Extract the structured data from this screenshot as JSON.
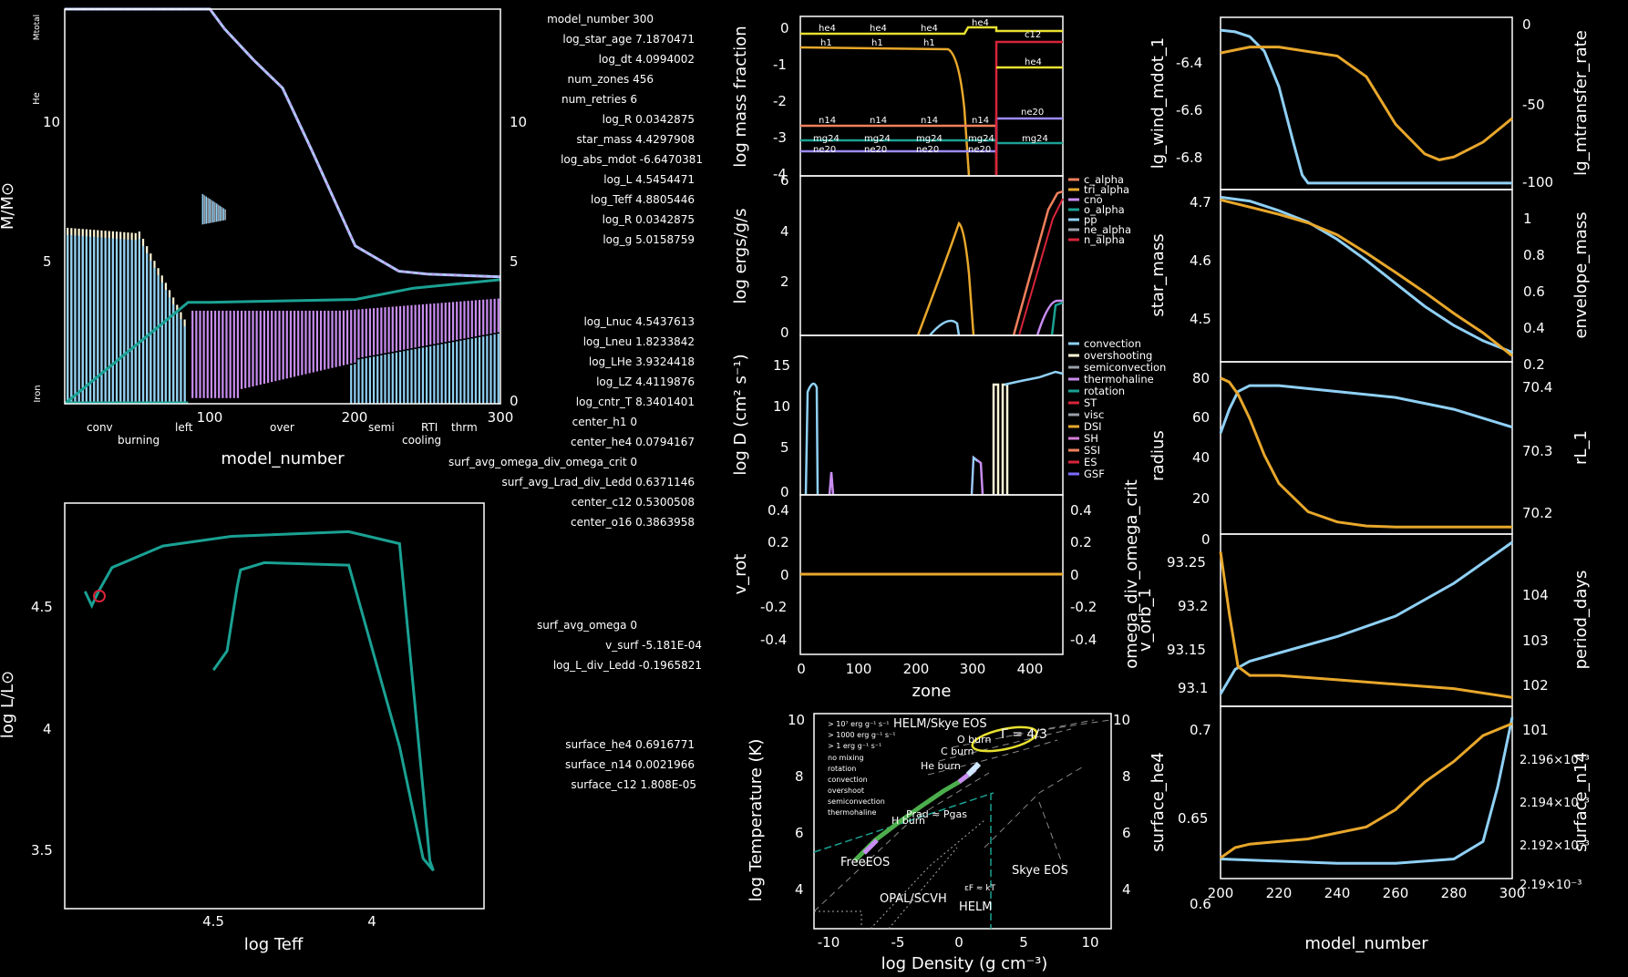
{
  "colors": {
    "orange": "#e8a72b",
    "blue": "#8fd0f5",
    "teal": "#1aa193",
    "purple": "#c88df0",
    "cream": "#fff7d6",
    "red": "#d8243a",
    "salmon": "#f0805c",
    "magenta": "#d77ed8",
    "gray": "#9aa0aa",
    "green": "#4cae4c"
  },
  "info": [
    {
      "label": "model_number",
      "value": "300"
    },
    {
      "label": "log_star_age",
      "value": "7.1870471"
    },
    {
      "label": "log_dt",
      "value": "4.0994002"
    },
    {
      "label": "num_zones",
      "value": "456"
    },
    {
      "label": "num_retries",
      "value": "6"
    },
    {
      "label": "log_R",
      "value": "0.0342875"
    },
    {
      "label": "star_mass",
      "value": "4.4297908"
    },
    {
      "label": "log_abs_mdot",
      "value": "-6.6470381"
    },
    {
      "label": "log_L",
      "value": "4.5454471"
    },
    {
      "label": "log_Teff",
      "value": "4.8805446"
    },
    {
      "label": "log_R",
      "value": "0.0342875"
    },
    {
      "label": "log_g",
      "value": "5.0158759"
    },
    {
      "label": "log_Lnuc",
      "value": "4.5437613"
    },
    {
      "label": "log_Lneu",
      "value": "1.8233842"
    },
    {
      "label": "log_LHe",
      "value": "3.9324418"
    },
    {
      "label": "log_LZ",
      "value": "4.4119876"
    },
    {
      "label": "log_cntr_T",
      "value": "8.3401401"
    },
    {
      "label": "center_h1",
      "value": "0"
    },
    {
      "label": "center_he4",
      "value": "0.0794167"
    },
    {
      "label": "surf_avg_omega_div_omega_crit",
      "value": "0"
    },
    {
      "label": "surf_avg_Lrad_div_Ledd",
      "value": "0.6371146"
    },
    {
      "label": "center_c12",
      "value": "0.5300508"
    },
    {
      "label": "center_o16",
      "value": "0.3863958"
    },
    {
      "label": "surf_avg_omega",
      "value": "0"
    },
    {
      "label": "v_surf",
      "value": "-5.181E-04"
    },
    {
      "label": "log_L_div_Ledd",
      "value": "-0.1965821"
    },
    {
      "label": "surface_he4",
      "value": "0.6916771"
    },
    {
      "label": "surface_n14",
      "value": "0.0021966"
    },
    {
      "label": "surface_c12",
      "value": "1.808E-05"
    }
  ],
  "chart_data": [
    {
      "id": "kipp",
      "type": "line",
      "xlabel": "model_number",
      "ylabel": "M/M⊙",
      "xlim": [
        0,
        300
      ],
      "ylim": [
        0,
        14
      ],
      "xticks": [
        "100",
        "200",
        "300"
      ],
      "yticks_left": [
        "5",
        "10"
      ],
      "yticks_right": [
        "0",
        "5",
        "10"
      ],
      "side_labels": {
        "mtotal": "Mtotal",
        "he": "He",
        "iron": "Iron"
      },
      "legend": [
        {
          "text": "conv",
          "color": "#8fd0f5"
        },
        {
          "text": "burning",
          "color": "#f0805c"
        },
        {
          "text": "left",
          "color": "#4f8fff"
        },
        {
          "text": "over",
          "color": "#ffffff"
        },
        {
          "text": "semi",
          "color": "#9aa0aa"
        },
        {
          "text": "cooling",
          "color": "#7b6cff"
        },
        {
          "text": "RTI",
          "color": "#f0805c"
        },
        {
          "text": "thrm",
          "color": "#c88df0"
        }
      ],
      "mass": {
        "x": [
          0,
          100,
          110,
          130,
          150,
          170,
          200,
          230,
          250,
          300
        ],
        "y": [
          14,
          14,
          13.3,
          12.2,
          11.2,
          9.0,
          5.6,
          4.7,
          4.6,
          4.5
        ]
      },
      "he_core": {
        "x": [
          0,
          85,
          100,
          200,
          240,
          300
        ],
        "y": [
          0,
          3.6,
          3.6,
          3.7,
          4.1,
          4.4
        ]
      }
    },
    {
      "id": "hr",
      "type": "line",
      "xlabel": "log Teff",
      "ylabel": "log L/L⊙",
      "xticks": [
        "4.5",
        "4"
      ],
      "yticks": [
        "3.5",
        "4",
        "4.5"
      ],
      "track": {
        "x": [
          4.88,
          4.86,
          4.84,
          4.8,
          4.65,
          4.45,
          4.1,
          3.95,
          3.86,
          3.85,
          3.88,
          3.95,
          4.1,
          4.35,
          4.42,
          4.43,
          4.46,
          4.5
        ],
        "y": [
          4.55,
          4.49,
          4.55,
          4.65,
          4.74,
          4.78,
          4.8,
          4.75,
          3.42,
          3.38,
          3.43,
          3.9,
          4.66,
          4.67,
          4.64,
          4.57,
          4.3,
          4.22
        ]
      }
    },
    {
      "id": "abund",
      "type": "line",
      "ylabel": "log mass fraction",
      "yticks": [
        "0",
        "-1",
        "-2",
        "-3",
        "-4"
      ],
      "ylim": [
        -4,
        0.3
      ],
      "isotope_labels": [
        "he4",
        "he4",
        "he4",
        "he4",
        "h1",
        "h1",
        "h1",
        "n14",
        "n14",
        "n14",
        "n14",
        "mg24",
        "mg24",
        "mg24",
        "mg24",
        "mg24",
        "ne20",
        "ne20",
        "ne20",
        "ne20",
        "c12",
        "he4",
        "ne20"
      ]
    },
    {
      "id": "power",
      "type": "line",
      "ylabel": "log ergs/g/s",
      "yticks": [
        "0",
        "2",
        "4",
        "6"
      ],
      "ylim": [
        -0.2,
        6.2
      ],
      "legend": [
        {
          "text": "c_alpha",
          "color": "#f0805c"
        },
        {
          "text": "tri_alpha",
          "color": "#e8a72b"
        },
        {
          "text": "cno",
          "color": "#c88df0"
        },
        {
          "text": "o_alpha",
          "color": "#1aa193"
        },
        {
          "text": "pp",
          "color": "#8fd0f5"
        },
        {
          "text": "ne_alpha",
          "color": "#9aa0aa"
        },
        {
          "text": "n_alpha",
          "color": "#d8243a"
        }
      ]
    },
    {
      "id": "mixing",
      "type": "line",
      "ylabel": "log D (cm² s⁻¹)",
      "yticks": [
        "0",
        "5",
        "10",
        "15"
      ],
      "ylim": [
        0,
        17.5
      ],
      "legend": [
        {
          "text": "convection",
          "color": "#8fd0f5"
        },
        {
          "text": "overshooting",
          "color": "#fff7d6"
        },
        {
          "text": "semiconvection",
          "color": "#9aa0aa"
        },
        {
          "text": "thermohaline",
          "color": "#c88df0"
        },
        {
          "text": "rotation",
          "color": "#1aa193"
        },
        {
          "text": "ST",
          "color": "#d8243a"
        },
        {
          "text": "visc",
          "color": "#9aa0aa"
        },
        {
          "text": "DSI",
          "color": "#e8a72b"
        },
        {
          "text": "SH",
          "color": "#d77ed8"
        },
        {
          "text": "SSI",
          "color": "#f0805c"
        },
        {
          "text": "ES",
          "color": "#d8243a"
        },
        {
          "text": "GSF",
          "color": "#7b6cff"
        }
      ]
    },
    {
      "id": "rot",
      "type": "line",
      "xlabel": "zone",
      "ylabel_left": "v_rot",
      "ylabel_right": "omega_div_omega_crit",
      "xticks": [
        "0",
        "100",
        "200",
        "300",
        "400"
      ],
      "yticks": [
        "0.4",
        "0.2",
        "0",
        "-0.2",
        "-0.4"
      ],
      "ylim": [
        -0.5,
        0.5
      ]
    },
    {
      "id": "trho",
      "type": "line",
      "xlabel": "log Density (g cm⁻³)",
      "ylabel": "log Temperature (K)",
      "xticks": [
        "-10",
        "-5",
        "0",
        "5",
        "10"
      ],
      "yticks": [
        "4",
        "6",
        "8",
        "10"
      ],
      "labels": {
        "helm": "HELM/Skye EOS",
        "free": "FreeEOS",
        "skye": "Skye EOS",
        "opal": "OPAL/SCVH",
        "helm2": "HELM",
        "gamma": "Γ = 4/3",
        "oburn": "O burn",
        "cburn": "C burn",
        "heburn": "He burn",
        "hburn": "H burn",
        "prad": "Prad ≈ Pgas",
        "eps": "εF ≈ kT"
      },
      "legend": [
        {
          "text": "> 10⁷ erg g⁻¹ s⁻¹",
          "color": "#d8243a"
        },
        {
          "text": "> 1000 erg g⁻¹ s⁻¹",
          "color": "#f0805c"
        },
        {
          "text": "> 1 erg g⁻¹ s⁻¹",
          "color": "#e8e030"
        },
        {
          "text": "no mixing",
          "color": "#4cae4c"
        },
        {
          "text": "rotation",
          "color": "#1aa193"
        },
        {
          "text": "convection",
          "color": "#8fd0f5"
        },
        {
          "text": "overshoot",
          "color": "#ffffff"
        },
        {
          "text": "semiconvection",
          "color": "#9aa0aa"
        },
        {
          "text": "thermohaline",
          "color": "#c88df0"
        }
      ]
    },
    {
      "id": "h1",
      "type": "line",
      "ylabel_left": "lg_wind_mdot_1",
      "ylabel_right": "lg_mtransfer_rate",
      "yticks_left": [
        "-6.4",
        "-6.6",
        "-6.8"
      ],
      "yticks_right": [
        "0",
        "-50",
        "-100"
      ],
      "left": {
        "x": [
          200,
          210,
          220,
          240,
          250,
          260,
          270,
          275,
          280,
          290,
          300
        ],
        "y": [
          -6.42,
          -6.4,
          -6.4,
          -6.43,
          -6.5,
          -6.66,
          -6.76,
          -6.78,
          -6.77,
          -6.72,
          -6.64
        ]
      },
      "right": {
        "x": [
          200,
          205,
          210,
          215,
          220,
          225,
          228,
          230,
          300
        ],
        "y": [
          -5,
          -6,
          -9,
          -18,
          -40,
          -75,
          -95,
          -100,
          -100
        ]
      }
    },
    {
      "id": "h2",
      "type": "line",
      "ylabel_left": "star_mass",
      "ylabel_right": "envelope_mass",
      "yticks_left": [
        "4.7",
        "4.6",
        "4.5"
      ],
      "yticks_right": [
        "1",
        "0.8",
        "0.6",
        "0.4",
        "0.2"
      ],
      "left": {
        "x": [
          200,
          210,
          220,
          230,
          240,
          250,
          260,
          270,
          280,
          290,
          300
        ],
        "y": [
          4.688,
          4.676,
          4.664,
          4.65,
          4.63,
          4.6,
          4.568,
          4.535,
          4.5,
          4.468,
          4.43
        ]
      },
      "right": {
        "x": [
          200,
          210,
          220,
          230,
          240,
          250,
          260,
          270,
          280,
          290,
          300
        ],
        "y": [
          1.03,
          1.01,
          0.96,
          0.9,
          0.81,
          0.7,
          0.58,
          0.46,
          0.36,
          0.28,
          0.22
        ]
      }
    },
    {
      "id": "h3",
      "type": "line",
      "ylabel_left": "radius",
      "ylabel_right": "rL_1",
      "yticks_left": [
        "80",
        "60",
        "40",
        "20",
        "0"
      ],
      "yticks_right": [
        "70.4",
        "70.3",
        "70.2"
      ],
      "left": {
        "x": [
          200,
          203,
          206,
          210,
          215,
          220,
          230,
          240,
          250,
          260,
          300
        ],
        "y": [
          74,
          72,
          66,
          54,
          36,
          22,
          8,
          3,
          1,
          0.5,
          0.5
        ]
      },
      "right": {
        "x": [
          200,
          203,
          206,
          210,
          220,
          240,
          260,
          280,
          300
        ],
        "y": [
          70.32,
          70.36,
          70.39,
          70.4,
          70.4,
          70.39,
          70.38,
          70.36,
          70.33
        ]
      }
    },
    {
      "id": "h4",
      "type": "line",
      "ylabel_left": "v_orb_1",
      "ylabel_right": "period_days",
      "yticks_left": [
        "93.25",
        "93.2",
        "93.15",
        "93.1"
      ],
      "yticks_right": [
        "104",
        "103",
        "102",
        "101"
      ],
      "left": {
        "x": [
          200,
          203,
          206,
          210,
          220,
          240,
          260,
          280,
          300
        ],
        "y": [
          93.24,
          93.17,
          93.11,
          93.1,
          93.1,
          93.095,
          93.09,
          93.085,
          93.075
        ]
      },
      "right": {
        "x": [
          200,
          205,
          210,
          220,
          240,
          260,
          280,
          290,
          300
        ],
        "y": [
          101.2,
          101.8,
          102.0,
          102.2,
          102.6,
          103.1,
          103.9,
          104.4,
          104.9
        ]
      }
    },
    {
      "id": "h5",
      "type": "line",
      "xlabel": "model_number",
      "ylabel_left": "surface_he4",
      "ylabel_right": "surface_n14",
      "xticks": [
        "200",
        "220",
        "240",
        "260",
        "280",
        "300"
      ],
      "yticks_left": [
        "0.7",
        "0.65",
        "0.6"
      ],
      "yticks_right": [
        "2.196×10⁻³",
        "2.194×10⁻³",
        "2.192×10⁻³",
        "2.19×10⁻³"
      ],
      "left": {
        "x": [
          200,
          205,
          210,
          230,
          250,
          260,
          270,
          280,
          290,
          300
        ],
        "y": [
          0.612,
          0.618,
          0.62,
          0.623,
          0.63,
          0.64,
          0.656,
          0.668,
          0.683,
          0.69
        ]
      },
      "right": {
        "x": [
          200,
          220,
          240,
          260,
          280,
          290,
          295,
          300
        ],
        "y": [
          2.1897,
          2.1896,
          2.1895,
          2.1895,
          2.1897,
          2.1905,
          2.193,
          2.1962
        ]
      }
    }
  ]
}
